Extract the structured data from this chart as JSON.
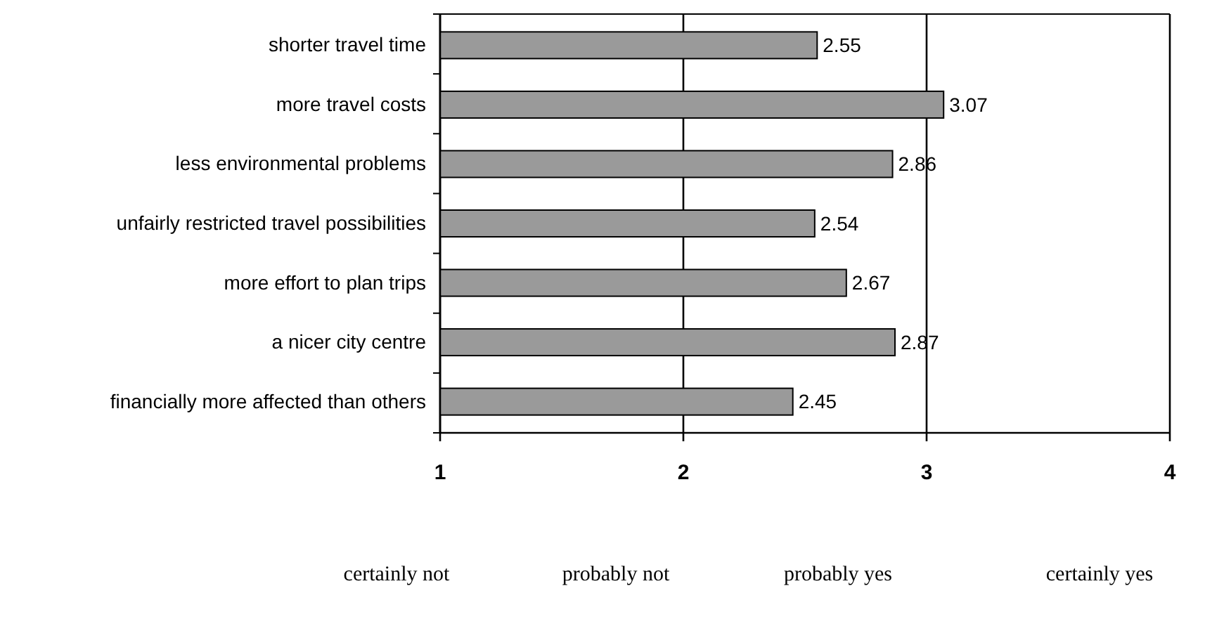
{
  "chart_data": {
    "type": "bar",
    "orientation": "horizontal",
    "categories": [
      "shorter travel time",
      "more travel costs",
      "less environmental problems",
      "unfairly restricted travel possibilities",
      "more effort to plan trips",
      "a nicer city centre",
      "financially more affected than others"
    ],
    "values": [
      2.55,
      3.07,
      2.86,
      2.54,
      2.67,
      2.87,
      2.45
    ],
    "color": "#9a9a9a",
    "xlim": [
      1,
      4
    ],
    "xticks": [
      1,
      2,
      3,
      4
    ],
    "grid": "x",
    "data_labels": true,
    "annotations": [
      "certainly not",
      "probably not",
      "probably yes",
      "certainly yes"
    ]
  }
}
